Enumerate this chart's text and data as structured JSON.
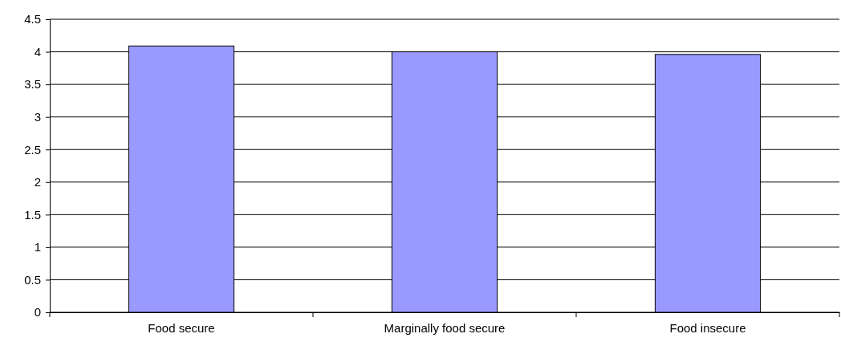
{
  "chart_data": {
    "type": "bar",
    "categories": [
      "Food secure",
      "Marginally food secure",
      "Food insecure"
    ],
    "values": [
      4.09,
      4.0,
      3.96
    ],
    "color": "#9999ff",
    "ylim": [
      0,
      4.5
    ],
    "yticks": [
      0,
      0.5,
      1,
      1.5,
      2,
      2.5,
      3,
      3.5,
      4,
      4.5
    ],
    "grid": "y"
  }
}
